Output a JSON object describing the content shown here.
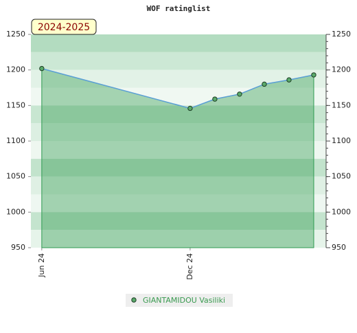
{
  "chart_data": {
    "type": "line",
    "title": "WOF ratinglist",
    "annotation": "2024-2025",
    "x": [
      0,
      6,
      7,
      8,
      9,
      10,
      11
    ],
    "xlim": [
      -0.44,
      11.5
    ],
    "xticks": [
      {
        "value": 0,
        "label": "Jun 24"
      },
      {
        "value": 6,
        "label": "Dec 24"
      }
    ],
    "series": [
      {
        "name": "GIANTAMIDOU Vasiliki",
        "color": "#5b9fd6",
        "marker_color": "#5aaa6a",
        "values": [
          1202,
          1146,
          1159,
          1166,
          1180,
          1186,
          1193
        ]
      }
    ],
    "ylim": [
      950,
      1250
    ],
    "yticks": [
      950,
      1000,
      1050,
      1100,
      1150,
      1200,
      1250
    ],
    "y2lim": [
      950,
      1250
    ],
    "y2ticks": [
      950,
      1000,
      1050,
      1100,
      1150,
      1200,
      1250
    ]
  }
}
